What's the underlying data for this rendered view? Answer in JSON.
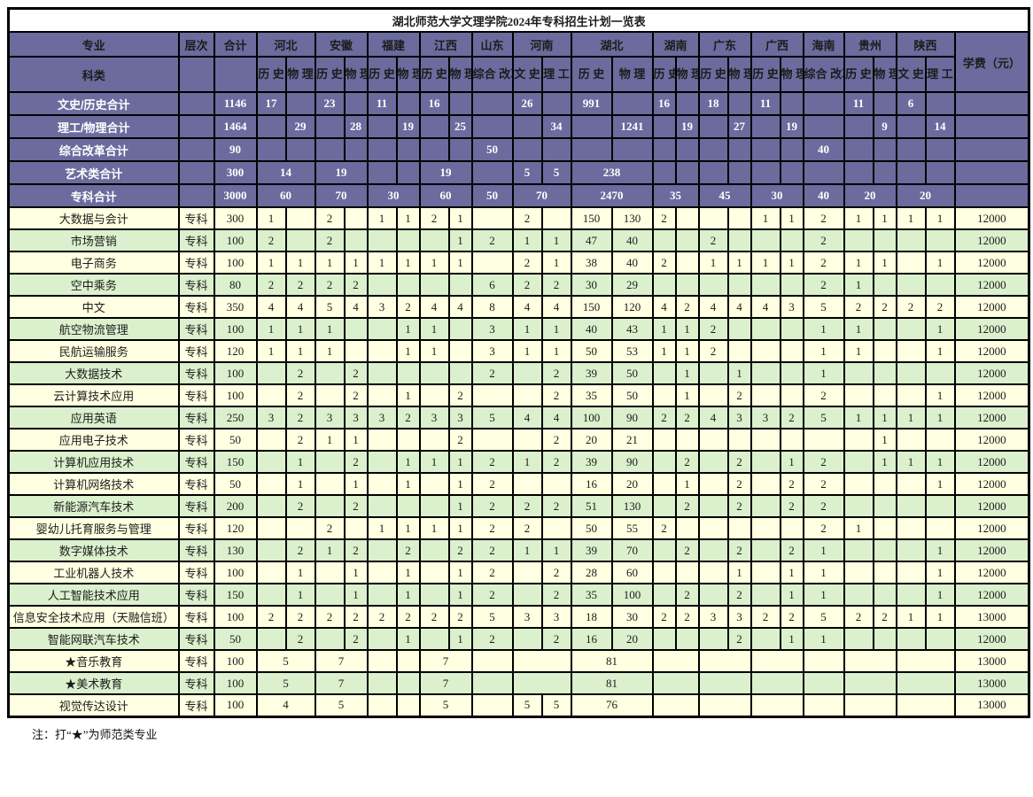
{
  "title": "湖北师范大学文理学院2024年专科招生计划一览表",
  "note": "注：打“★”为师范类专业",
  "colors": {
    "header_bg": "#6b6b9e",
    "row_yellow": "#ffffe1",
    "row_green": "#dbf0cd",
    "border": "#000000"
  },
  "header": {
    "major": "专业",
    "category": "科类",
    "level": "层次",
    "total": "合计",
    "fee": "学费（元）",
    "provinces": [
      {
        "name": "河北",
        "subs": [
          "历史",
          "物理"
        ]
      },
      {
        "name": "安徽",
        "subs": [
          "历史",
          "物理"
        ]
      },
      {
        "name": "福建",
        "subs": [
          "历史",
          "物理"
        ]
      },
      {
        "name": "江西",
        "subs": [
          "历史",
          "物理"
        ]
      },
      {
        "name": "山东",
        "subs": [
          "综合改革"
        ]
      },
      {
        "name": "河南",
        "subs": [
          "文史",
          "理工"
        ]
      },
      {
        "name": "湖北",
        "subs": [
          "历史",
          "物理"
        ]
      },
      {
        "name": "湖南",
        "subs": [
          "历史",
          "物理"
        ]
      },
      {
        "name": "广东",
        "subs": [
          "历史",
          "物理"
        ]
      },
      {
        "name": "广西",
        "subs": [
          "历史",
          "物理"
        ]
      },
      {
        "name": "海南",
        "subs": [
          "综合改革"
        ]
      },
      {
        "name": "贵州",
        "subs": [
          "历史",
          "物理"
        ]
      },
      {
        "name": "陕西",
        "subs": [
          "文史",
          "理工"
        ]
      }
    ]
  },
  "summary_rows": [
    {
      "label": "文史/历史合计",
      "level": "",
      "total": "1146",
      "fee": "",
      "cells": [
        "17",
        "",
        "23",
        "",
        "11",
        "",
        "16",
        "",
        "",
        "26",
        "",
        "991",
        "",
        "16",
        "",
        "18",
        "",
        "11",
        "",
        "",
        "11",
        "",
        "6",
        ""
      ]
    },
    {
      "label": "理工/物理合计",
      "level": "",
      "total": "1464",
      "fee": "",
      "cells": [
        "",
        "29",
        "",
        "28",
        "",
        "19",
        "",
        "25",
        "",
        "",
        "34",
        "",
        "1241",
        "",
        "19",
        "",
        "27",
        "",
        "19",
        "",
        "",
        "9",
        "",
        "14"
      ]
    },
    {
      "label": "综合改革合计",
      "level": "",
      "total": "90",
      "fee": "",
      "cells": [
        "",
        "",
        "",
        "",
        "",
        "",
        "",
        "",
        "50",
        "",
        "",
        "",
        "",
        "",
        "",
        "",
        "",
        "",
        "",
        "40",
        "",
        "",
        "",
        ""
      ]
    },
    {
      "label": "艺术类合计",
      "level": "",
      "total": "300",
      "fee": "",
      "cells": [
        [
          2,
          "14"
        ],
        [
          2,
          "19"
        ],
        "",
        "",
        [
          2,
          "19"
        ],
        "",
        "5",
        "5",
        [
          2,
          "238"
        ],
        "",
        "",
        "",
        "",
        "",
        "",
        "",
        "",
        "",
        "",
        ""
      ]
    },
    {
      "label": "专科合计",
      "level": "",
      "total": "3000",
      "fee": "",
      "cells": [
        [
          2,
          "60"
        ],
        [
          2,
          "70"
        ],
        [
          2,
          "30"
        ],
        [
          2,
          "60"
        ],
        "50",
        [
          2,
          "70"
        ],
        [
          2,
          "2470"
        ],
        [
          2,
          "35"
        ],
        [
          2,
          "45"
        ],
        [
          2,
          "30"
        ],
        "40",
        [
          2,
          "20"
        ],
        [
          2,
          "20"
        ]
      ]
    }
  ],
  "data_rows": [
    {
      "name": "大数据与会计",
      "level": "专科",
      "total": "300",
      "fee": "12000",
      "cells": [
        "1",
        "",
        "2",
        "",
        "1",
        "1",
        "2",
        "1",
        "",
        "2",
        "",
        "150",
        "130",
        "2",
        "",
        "",
        "",
        "1",
        "1",
        "2",
        "1",
        "1",
        "1",
        "1"
      ]
    },
    {
      "name": "市场营销",
      "level": "专科",
      "total": "100",
      "fee": "12000",
      "cells": [
        "2",
        "",
        "2",
        "",
        "",
        "",
        "",
        "1",
        "2",
        "1",
        "1",
        "47",
        "40",
        "",
        "",
        "2",
        "",
        "",
        "",
        "2",
        "",
        "",
        "",
        ""
      ]
    },
    {
      "name": "电子商务",
      "level": "专科",
      "total": "100",
      "fee": "12000",
      "cells": [
        "1",
        "1",
        "1",
        "1",
        "1",
        "1",
        "1",
        "1",
        "",
        "2",
        "1",
        "38",
        "40",
        "2",
        "",
        "1",
        "1",
        "1",
        "1",
        "2",
        "1",
        "1",
        "",
        "1"
      ]
    },
    {
      "name": "空中乘务",
      "level": "专科",
      "total": "80",
      "fee": "12000",
      "cells": [
        "2",
        "2",
        "2",
        "2",
        "",
        "",
        "",
        "",
        "6",
        "2",
        "2",
        "30",
        "29",
        "",
        "",
        "",
        "",
        "",
        "",
        "2",
        "1",
        "",
        "",
        ""
      ]
    },
    {
      "name": "中文",
      "level": "专科",
      "total": "350",
      "fee": "12000",
      "cells": [
        "4",
        "4",
        "5",
        "4",
        "3",
        "2",
        "4",
        "4",
        "8",
        "4",
        "4",
        "150",
        "120",
        "4",
        "2",
        "4",
        "4",
        "4",
        "3",
        "5",
        "2",
        "2",
        "2",
        "2"
      ]
    },
    {
      "name": "航空物流管理",
      "level": "专科",
      "total": "100",
      "fee": "12000",
      "cells": [
        "1",
        "1",
        "1",
        "",
        "",
        "1",
        "1",
        "",
        "3",
        "1",
        "1",
        "40",
        "43",
        "1",
        "1",
        "2",
        "",
        "",
        "",
        "1",
        "1",
        "",
        "",
        "1"
      ]
    },
    {
      "name": "民航运输服务",
      "level": "专科",
      "total": "120",
      "fee": "12000",
      "cells": [
        "1",
        "1",
        "1",
        "",
        "",
        "1",
        "1",
        "",
        "3",
        "1",
        "1",
        "50",
        "53",
        "1",
        "1",
        "2",
        "",
        "",
        "",
        "1",
        "1",
        "",
        "",
        "1"
      ]
    },
    {
      "name": "大数据技术",
      "level": "专科",
      "total": "100",
      "fee": "12000",
      "cells": [
        "",
        "2",
        "",
        "2",
        "",
        "",
        "",
        "",
        "2",
        "",
        "2",
        "39",
        "50",
        "",
        "1",
        "",
        "1",
        "",
        "",
        "1",
        "",
        "",
        "",
        ""
      ]
    },
    {
      "name": "云计算技术应用",
      "level": "专科",
      "total": "100",
      "fee": "12000",
      "cells": [
        "",
        "2",
        "",
        "2",
        "",
        "1",
        "",
        "2",
        "",
        "",
        "2",
        "35",
        "50",
        "",
        "1",
        "",
        "2",
        "",
        "",
        "2",
        "",
        "",
        "",
        "1"
      ]
    },
    {
      "name": "应用英语",
      "level": "专科",
      "total": "250",
      "fee": "12000",
      "cells": [
        "3",
        "2",
        "3",
        "3",
        "3",
        "2",
        "3",
        "3",
        "5",
        "4",
        "4",
        "100",
        "90",
        "2",
        "2",
        "4",
        "3",
        "3",
        "2",
        "5",
        "1",
        "1",
        "1",
        "1"
      ]
    },
    {
      "name": "应用电子技术",
      "level": "专科",
      "total": "50",
      "fee": "12000",
      "cells": [
        "",
        "2",
        "1",
        "1",
        "",
        "",
        "",
        "2",
        "",
        "",
        "2",
        "20",
        "21",
        "",
        "",
        "",
        "",
        "",
        "",
        "",
        "",
        "1",
        "",
        ""
      ]
    },
    {
      "name": "计算机应用技术",
      "level": "专科",
      "total": "150",
      "fee": "12000",
      "cells": [
        "",
        "1",
        "",
        "2",
        "",
        "1",
        "1",
        "1",
        "2",
        "1",
        "2",
        "39",
        "90",
        "",
        "2",
        "",
        "2",
        "",
        "1",
        "2",
        "",
        "1",
        "1",
        "1"
      ]
    },
    {
      "name": "计算机网络技术",
      "level": "专科",
      "total": "50",
      "fee": "12000",
      "cells": [
        "",
        "1",
        "",
        "1",
        "",
        "1",
        "",
        "1",
        "2",
        "",
        "",
        "16",
        "20",
        "",
        "1",
        "",
        "2",
        "",
        "2",
        "2",
        "",
        "",
        "",
        "1"
      ]
    },
    {
      "name": "新能源汽车技术",
      "level": "专科",
      "total": "200",
      "fee": "12000",
      "cells": [
        "",
        "2",
        "",
        "2",
        "",
        "",
        "",
        "1",
        "2",
        "2",
        "2",
        "51",
        "130",
        "",
        "2",
        "",
        "2",
        "",
        "2",
        "2",
        "",
        "",
        "",
        ""
      ]
    },
    {
      "name": "婴幼儿托育服务与管理",
      "level": "专科",
      "total": "120",
      "fee": "12000",
      "cells": [
        "",
        "",
        "2",
        "",
        "1",
        "1",
        "1",
        "1",
        "2",
        "2",
        "",
        "50",
        "55",
        "2",
        "",
        "",
        "",
        "",
        "",
        "2",
        "1",
        "",
        "",
        ""
      ]
    },
    {
      "name": "数字媒体技术",
      "level": "专科",
      "total": "130",
      "fee": "12000",
      "cells": [
        "",
        "2",
        "1",
        "2",
        "",
        "2",
        "",
        "2",
        "2",
        "1",
        "1",
        "39",
        "70",
        "",
        "2",
        "",
        "2",
        "",
        "2",
        "1",
        "",
        "",
        "",
        "1"
      ]
    },
    {
      "name": "工业机器人技术",
      "level": "专科",
      "total": "100",
      "fee": "12000",
      "cells": [
        "",
        "1",
        "",
        "1",
        "",
        "1",
        "",
        "1",
        "2",
        "",
        "2",
        "28",
        "60",
        "",
        "",
        "",
        "1",
        "",
        "1",
        "1",
        "",
        "",
        "",
        "1"
      ]
    },
    {
      "name": "人工智能技术应用",
      "level": "专科",
      "total": "150",
      "fee": "12000",
      "cells": [
        "",
        "1",
        "",
        "1",
        "",
        "1",
        "",
        "1",
        "2",
        "",
        "2",
        "35",
        "100",
        "",
        "2",
        "",
        "2",
        "",
        "1",
        "1",
        "",
        "",
        "",
        "1"
      ]
    },
    {
      "name": "信息安全技术应用（天融信班）",
      "level": "专科",
      "total": "100",
      "fee": "13000",
      "cells": [
        "2",
        "2",
        "2",
        "2",
        "2",
        "2",
        "2",
        "2",
        "5",
        "3",
        "3",
        "18",
        "30",
        "2",
        "2",
        "3",
        "3",
        "2",
        "2",
        "5",
        "2",
        "2",
        "1",
        "1"
      ]
    },
    {
      "name": "智能网联汽车技术",
      "level": "专科",
      "total": "50",
      "fee": "12000",
      "cells": [
        "",
        "2",
        "",
        "2",
        "",
        "1",
        "",
        "1",
        "2",
        "",
        "2",
        "16",
        "20",
        "",
        "",
        "",
        "2",
        "",
        "1",
        "1",
        "",
        "",
        "",
        ""
      ]
    },
    {
      "name": "★音乐教育",
      "level": "专科",
      "total": "100",
      "fee": "13000",
      "cells": [
        [
          2,
          "5"
        ],
        [
          2,
          "7"
        ],
        "",
        "",
        [
          2,
          "7"
        ],
        "",
        [
          2,
          ""
        ],
        [
          2,
          "81"
        ],
        [
          2,
          ""
        ],
        [
          2,
          ""
        ],
        [
          2,
          ""
        ],
        "",
        [
          2,
          ""
        ],
        [
          2,
          ""
        ]
      ]
    },
    {
      "name": "★美术教育",
      "level": "专科",
      "total": "100",
      "fee": "13000",
      "cells": [
        [
          2,
          "5"
        ],
        [
          2,
          "7"
        ],
        "",
        "",
        [
          2,
          "7"
        ],
        "",
        [
          2,
          ""
        ],
        [
          2,
          "81"
        ],
        [
          2,
          ""
        ],
        [
          2,
          ""
        ],
        [
          2,
          ""
        ],
        "",
        [
          2,
          ""
        ],
        [
          2,
          ""
        ]
      ]
    },
    {
      "name": "视觉传达设计",
      "level": "专科",
      "total": "100",
      "fee": "13000",
      "cells": [
        [
          2,
          "4"
        ],
        [
          2,
          "5"
        ],
        "",
        "",
        [
          2,
          "5"
        ],
        "",
        "5",
        "5",
        [
          2,
          "76"
        ],
        [
          2,
          ""
        ],
        [
          2,
          ""
        ],
        [
          2,
          ""
        ],
        "",
        [
          2,
          ""
        ],
        [
          2,
          ""
        ]
      ]
    }
  ]
}
